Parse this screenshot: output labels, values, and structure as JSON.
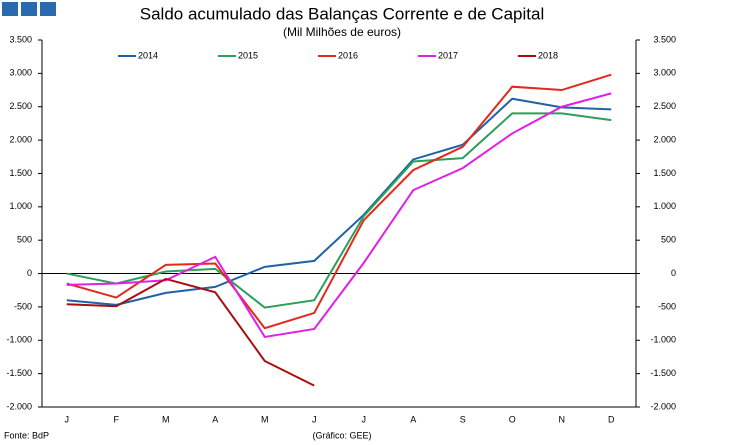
{
  "chart_data": {
    "type": "line",
    "title": "Saldo acumulado das Balanças Corrente e de Capital",
    "subtitle": "(Mil Milhões de euros)",
    "source": "Fonte: BdP",
    "credit": "(Gráfico: GEE)",
    "categories": [
      "J",
      "F",
      "M",
      "A",
      "M",
      "J",
      "J",
      "A",
      "S",
      "O",
      "N",
      "D"
    ],
    "series": [
      {
        "name": "2014",
        "color": "#1f62a8",
        "values": [
          -400,
          -470,
          -290,
          -200,
          100,
          190,
          880,
          1710,
          1930,
          2620,
          2490,
          2460
        ]
      },
      {
        "name": "2015",
        "color": "#2ca05a",
        "values": [
          0,
          -150,
          30,
          70,
          -510,
          -400,
          860,
          1680,
          1730,
          2400,
          2400,
          2300
        ]
      },
      {
        "name": "2016",
        "color": "#e02a1c",
        "values": [
          -150,
          -360,
          130,
          150,
          -820,
          -590,
          800,
          1550,
          1900,
          2800,
          2750,
          2980
        ]
      },
      {
        "name": "2017",
        "color": "#e020e6",
        "values": [
          -170,
          -150,
          -100,
          250,
          -950,
          -830,
          160,
          1250,
          1580,
          2100,
          2500,
          2700
        ]
      },
      {
        "name": "2018",
        "color": "#a81010",
        "values": [
          -460,
          -490,
          -80,
          -280,
          -1310,
          -1680,
          null,
          null,
          null,
          null,
          null,
          null
        ]
      }
    ],
    "ylim": [
      -2000,
      3500
    ],
    "yticks": [
      {
        "value": -2000,
        "label": "-2.000"
      },
      {
        "value": -1500,
        "label": "-1.500"
      },
      {
        "value": -1000,
        "label": "-1.000"
      },
      -500,
      0,
      500,
      {
        "value": 1000,
        "label": "1.000"
      },
      {
        "value": 1500,
        "label": "1.500"
      },
      {
        "value": 2000,
        "label": "2.000"
      },
      {
        "value": 2500,
        "label": "2.500"
      },
      {
        "value": 3000,
        "label": "3.000"
      },
      {
        "value": 3500,
        "label": "3.500"
      }
    ],
    "y2lim": [
      -2000,
      3500
    ],
    "y2ticks": [
      {
        "value": -2000,
        "label": "-2.000"
      },
      {
        "value": -1500,
        "label": "-1.500"
      },
      {
        "value": -1000,
        "label": "-1.000"
      },
      -500,
      0,
      500,
      {
        "value": 1000,
        "label": "1.000"
      },
      {
        "value": 1500,
        "label": "1.500"
      },
      {
        "value": 2000,
        "label": "2.000"
      },
      {
        "value": 2500,
        "label": "2.500"
      },
      {
        "value": 3000,
        "label": "3.000"
      },
      {
        "value": 3500,
        "label": "3.500"
      }
    ],
    "legend": "top"
  }
}
